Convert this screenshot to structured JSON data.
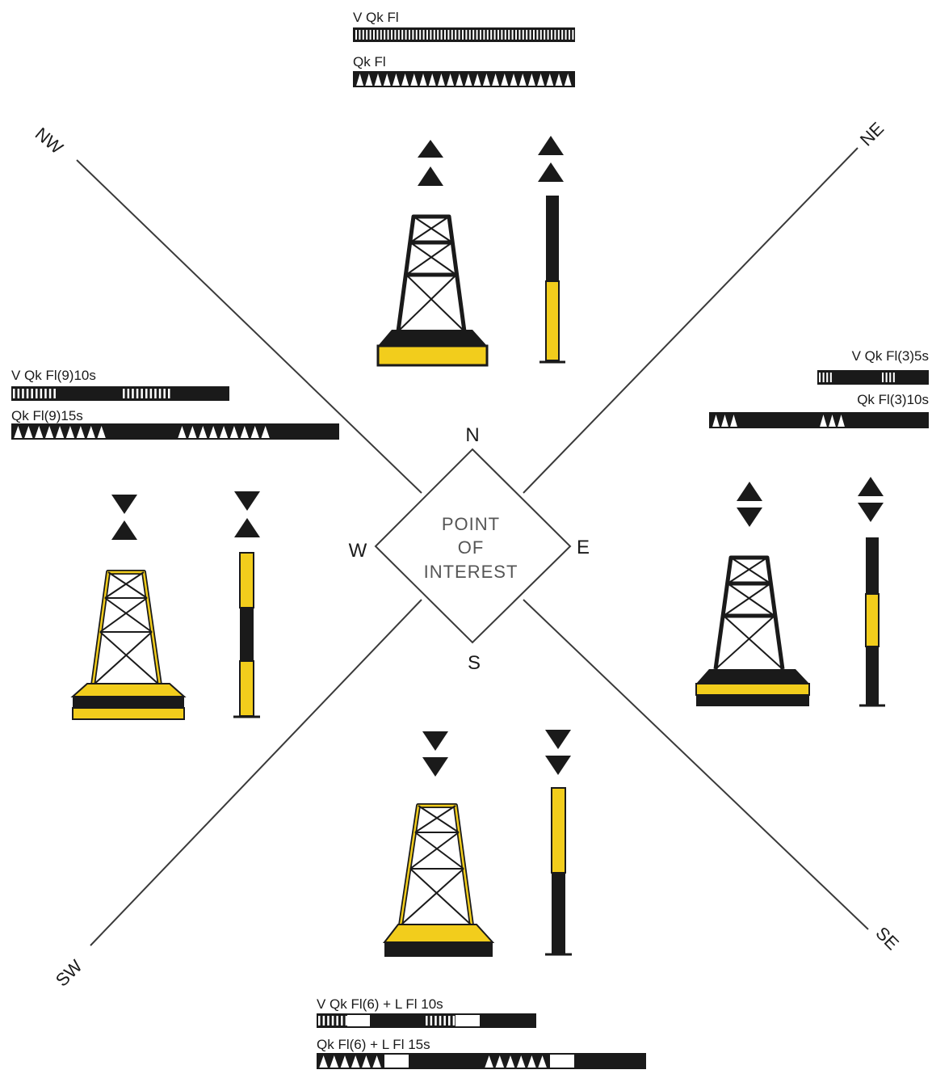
{
  "colors": {
    "black": "#1a1a1a",
    "yellow": "#f2cd1c",
    "white": "#ffffff",
    "line": "#3a3a3a"
  },
  "center": {
    "text_line1": "POINT",
    "text_line2": "OF",
    "text_line3": "INTEREST"
  },
  "cardinals": {
    "n": "N",
    "e": "E",
    "s": "S",
    "w": "W"
  },
  "directions": {
    "nw": "NW",
    "ne": "NE",
    "sw": "SW",
    "se": "SE"
  },
  "north_mark": {
    "topmark": "two cones points up",
    "light_1": "V Qk Fl",
    "light_2": "Qk Fl"
  },
  "east_mark": {
    "topmark": "two cones base to base",
    "light_1": "V Qk Fl(3)5s",
    "light_2": "Qk Fl(3)10s"
  },
  "south_mark": {
    "topmark": "two cones points down",
    "light_1": "V Qk Fl(6) + L Fl 10s",
    "light_2": "Qk Fl(6) + L Fl 15s"
  },
  "west_mark": {
    "topmark": "two cones point to point",
    "light_1": "V Qk Fl(9)10s",
    "light_2": "Qk Fl(9)15s"
  }
}
